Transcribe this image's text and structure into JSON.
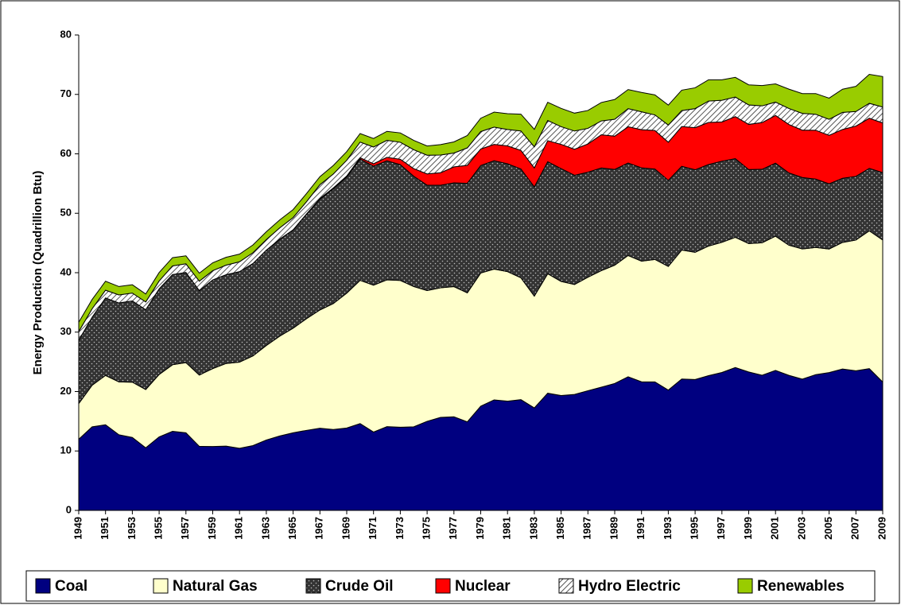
{
  "chart_data": {
    "type": "stacked_area",
    "y_label": "Energy Production (Quadrillion Btu)",
    "x": [
      1949,
      1950,
      1951,
      1952,
      1953,
      1954,
      1955,
      1956,
      1957,
      1958,
      1959,
      1960,
      1961,
      1962,
      1963,
      1964,
      1965,
      1966,
      1967,
      1968,
      1969,
      1970,
      1971,
      1972,
      1973,
      1974,
      1975,
      1976,
      1977,
      1978,
      1979,
      1980,
      1981,
      1982,
      1983,
      1984,
      1985,
      1986,
      1987,
      1988,
      1989,
      1990,
      1991,
      1992,
      1993,
      1994,
      1995,
      1996,
      1997,
      1998,
      1999,
      2000,
      2001,
      2002,
      2003,
      2004,
      2005,
      2006,
      2007,
      2008,
      2009
    ],
    "xlim": [
      1949,
      2009
    ],
    "xticks": [
      1949,
      1951,
      1953,
      1955,
      1957,
      1959,
      1961,
      1963,
      1965,
      1967,
      1969,
      1971,
      1973,
      1975,
      1977,
      1979,
      1981,
      1983,
      1985,
      1987,
      1989,
      1991,
      1993,
      1995,
      1997,
      1999,
      2001,
      2003,
      2005,
      2007,
      2009
    ],
    "ylim": [
      0,
      80
    ],
    "yticks": [
      0,
      10,
      20,
      30,
      40,
      50,
      60,
      70,
      80
    ],
    "series": [
      {
        "name": "Coal",
        "color": "#000080",
        "values": [
          11.97,
          14.06,
          14.41,
          12.73,
          12.28,
          10.54,
          12.37,
          13.31,
          13.06,
          10.78,
          10.76,
          10.82,
          10.45,
          10.9,
          11.85,
          12.52,
          13.06,
          13.47,
          13.83,
          13.61,
          13.86,
          14.61,
          13.19,
          14.09,
          13.99,
          14.07,
          14.99,
          15.65,
          15.76,
          14.91,
          17.54,
          18.6,
          18.38,
          18.64,
          17.25,
          19.72,
          19.33,
          19.51,
          20.14,
          20.74,
          21.36,
          22.49,
          21.64,
          21.63,
          20.25,
          22.11,
          22.03,
          22.68,
          23.21,
          24.05,
          23.3,
          22.74,
          23.55,
          22.73,
          22.09,
          22.85,
          23.19,
          23.79,
          23.49,
          23.85,
          21.6
        ]
      },
      {
        "name": "Natural Gas",
        "color": "#FFFFCC",
        "values": [
          6.0,
          7.0,
          8.3,
          8.9,
          9.3,
          9.8,
          10.5,
          11.2,
          11.8,
          12.0,
          13.1,
          13.9,
          14.5,
          15.1,
          15.9,
          16.8,
          17.6,
          18.8,
          19.9,
          21.2,
          22.7,
          24.1,
          24.7,
          24.7,
          24.7,
          23.6,
          22.0,
          21.8,
          21.9,
          21.7,
          22.4,
          22.0,
          21.8,
          20.5,
          18.8,
          20.1,
          19.2,
          18.5,
          19.1,
          19.6,
          19.9,
          20.4,
          20.3,
          20.6,
          20.8,
          21.7,
          21.4,
          21.8,
          21.9,
          21.9,
          21.6,
          22.3,
          22.6,
          21.9,
          21.9,
          21.4,
          20.8,
          21.3,
          22.0,
          23.2,
          23.9
        ]
      },
      {
        "name": "Crude Oil",
        "color": "#333333",
        "fill_pattern": "dots",
        "values": [
          10.68,
          11.45,
          13.04,
          13.28,
          13.67,
          13.43,
          14.41,
          15.18,
          15.18,
          14.2,
          14.93,
          14.94,
          15.22,
          15.52,
          16.02,
          16.29,
          16.52,
          17.56,
          18.65,
          19.31,
          19.56,
          20.4,
          20.03,
          20.04,
          19.49,
          18.57,
          17.73,
          17.26,
          17.45,
          18.43,
          18.1,
          18.25,
          18.15,
          18.31,
          18.39,
          18.85,
          18.99,
          18.38,
          17.67,
          17.28,
          16.12,
          15.57,
          15.7,
          15.22,
          14.49,
          14.1,
          13.89,
          13.72,
          13.66,
          13.24,
          12.45,
          12.36,
          12.28,
          12.16,
          12.03,
          11.5,
          10.96,
          10.8,
          10.72,
          10.51,
          11.34
        ]
      },
      {
        "name": "Nuclear",
        "color": "#FF0000",
        "values": [
          0,
          0,
          0,
          0,
          0,
          0,
          0,
          0,
          0,
          0,
          0,
          0,
          0.01,
          0.02,
          0.03,
          0.04,
          0.04,
          0.06,
          0.09,
          0.14,
          0.15,
          0.24,
          0.41,
          0.58,
          0.91,
          1.27,
          1.9,
          2.11,
          2.7,
          3.02,
          2.78,
          2.74,
          3.01,
          3.13,
          3.2,
          3.55,
          4.08,
          4.38,
          4.75,
          5.59,
          5.6,
          6.1,
          6.42,
          6.48,
          6.41,
          6.69,
          7.08,
          7.09,
          6.6,
          7.07,
          7.61,
          7.86,
          8.03,
          8.15,
          7.96,
          8.22,
          8.16,
          8.21,
          8.46,
          8.43,
          8.36
        ]
      },
      {
        "name": "Hydro Electric",
        "color": "#555555",
        "fill_pattern": "hatch",
        "values": [
          1.45,
          1.42,
          1.31,
          1.34,
          1.32,
          1.31,
          1.32,
          1.45,
          1.46,
          1.59,
          1.55,
          1.61,
          1.66,
          1.82,
          1.77,
          1.89,
          2.06,
          2.06,
          2.35,
          2.35,
          2.65,
          2.63,
          2.82,
          2.86,
          2.86,
          3.18,
          3.15,
          2.98,
          2.33,
          2.94,
          2.93,
          2.9,
          2.76,
          3.27,
          3.53,
          3.39,
          2.97,
          3.07,
          2.63,
          2.33,
          2.84,
          3.05,
          3.02,
          2.62,
          2.89,
          2.68,
          3.21,
          3.59,
          3.64,
          3.3,
          3.27,
          2.81,
          2.24,
          2.69,
          2.83,
          2.69,
          2.7,
          2.87,
          2.45,
          2.51,
          2.68
        ]
      },
      {
        "name": "Renewables",
        "color": "#99CC00",
        "values": [
          1.55,
          1.56,
          1.5,
          1.42,
          1.4,
          1.34,
          1.42,
          1.39,
          1.34,
          1.35,
          1.33,
          1.32,
          1.29,
          1.3,
          1.32,
          1.34,
          1.34,
          1.37,
          1.34,
          1.43,
          1.45,
          1.43,
          1.43,
          1.51,
          1.57,
          1.58,
          1.55,
          1.75,
          1.87,
          2.08,
          2.24,
          2.53,
          2.65,
          2.83,
          2.95,
          3.07,
          3.08,
          3.01,
          3.01,
          3.1,
          3.33,
          3.21,
          3.25,
          3.37,
          3.36,
          3.43,
          3.5,
          3.58,
          3.45,
          3.31,
          3.38,
          3.42,
          3.07,
          3.26,
          3.33,
          3.48,
          3.56,
          3.9,
          4.23,
          4.88,
          5.13
        ]
      }
    ]
  }
}
